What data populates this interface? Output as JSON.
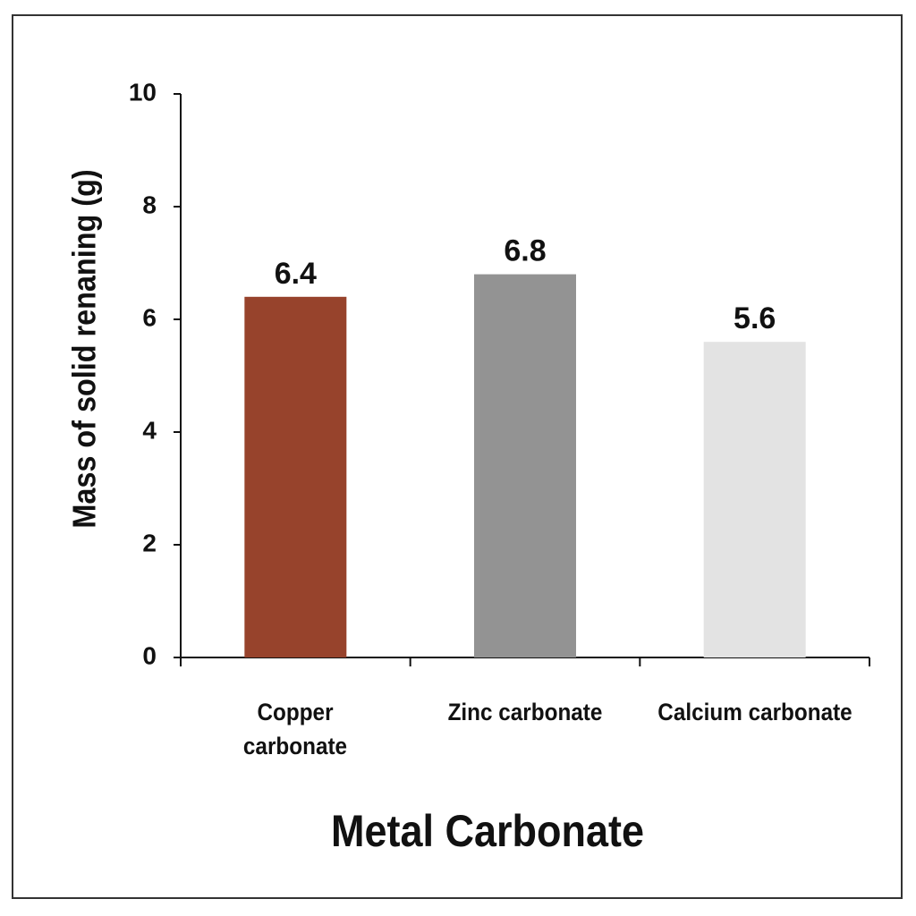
{
  "chart_data": {
    "type": "bar",
    "x_label": "Metal Carbonate",
    "y_label": "Mass of solid renaning (g)",
    "categories": [
      "Copper\ncarbonate",
      "Zinc carbonate",
      "Calcium carbonate"
    ],
    "values": [
      6.4,
      6.8,
      5.6
    ],
    "colors": [
      "#97432c",
      "#939393",
      "#e3e3e3"
    ],
    "ylim": [
      0,
      10
    ],
    "yticks": [
      0,
      2,
      4,
      6,
      8,
      10
    ],
    "grid": false
  }
}
